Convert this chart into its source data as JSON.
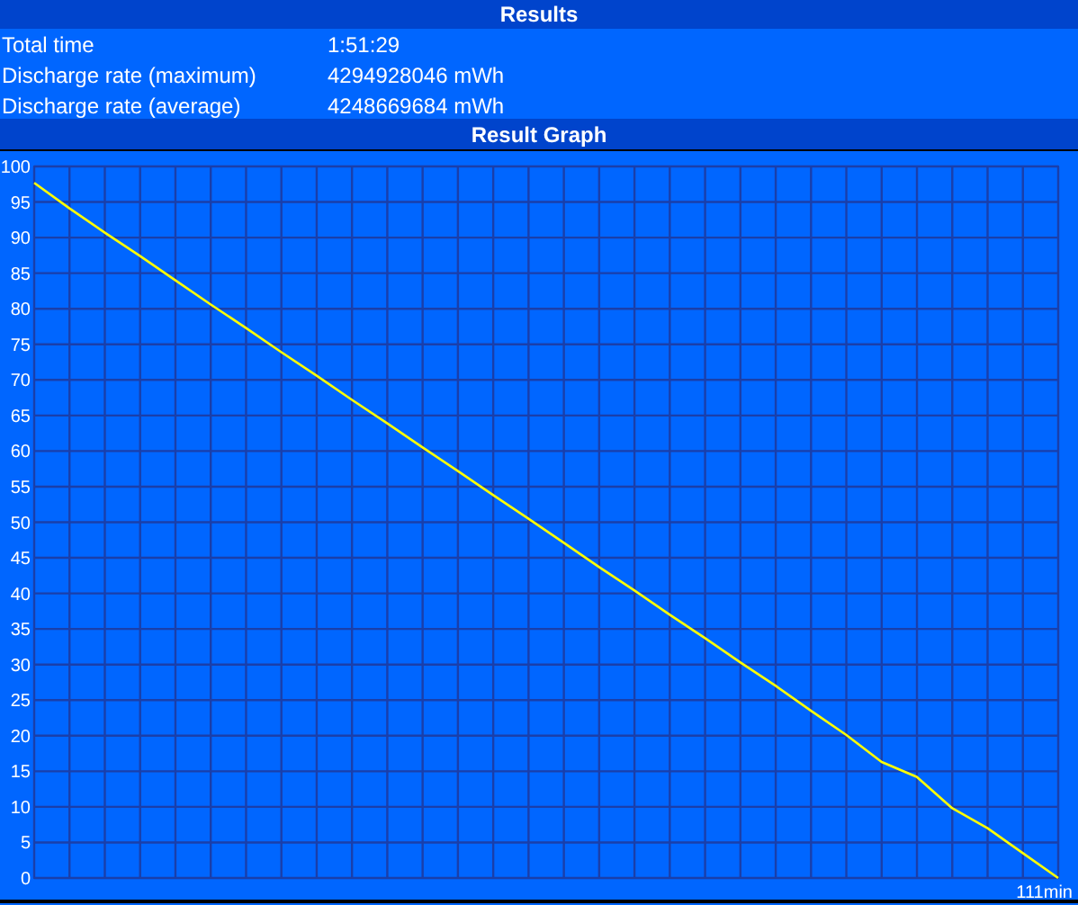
{
  "chart_data": {
    "type": "line",
    "title": "Result Graph",
    "annotations": [
      "Results",
      "Total time",
      "1:51:29",
      "Discharge rate (maximum)",
      "4294928046 mWh",
      "Discharge rate (average)",
      "4248669684 mWh",
      "111min"
    ],
    "categories": [
      null,
      null,
      null,
      null,
      null,
      null,
      null,
      null,
      null,
      null,
      null,
      null,
      null,
      null,
      null,
      null,
      null,
      null,
      null,
      null,
      null,
      null,
      null,
      null,
      null,
      null,
      null,
      null,
      null,
      null
    ],
    "series": [
      {
        "color": "#ffff00",
        "values": [
          97.7,
          94.1,
          90.7,
          87.4,
          84.0,
          80.6,
          77.3,
          73.9,
          70.6,
          67.2,
          63.9,
          60.5,
          57.2,
          53.8,
          50.5,
          47.1,
          43.7,
          40.4,
          37.0,
          33.7,
          30.3,
          27.0,
          23.5,
          20.1,
          16.3,
          14.2,
          9.8,
          7.0,
          3.5,
          0
        ]
      }
    ],
    "ylim": [
      0,
      100
    ],
    "yticks": [
      0,
      5,
      10,
      15,
      20,
      25,
      30,
      35,
      40,
      45,
      50,
      55,
      60,
      65,
      70,
      75,
      80,
      85,
      90,
      95,
      100
    ],
    "grid": true,
    "line_style": "solid"
  }
}
